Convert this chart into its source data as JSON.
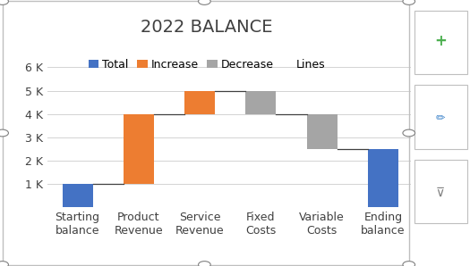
{
  "title": "2022 BALANCE",
  "categories": [
    "Starting\nbalance",
    "Product\nRevenue",
    "Service\nRevenue",
    "Fixed\nCosts",
    "Variable\nCosts",
    "Ending\nbalance"
  ],
  "values": [
    1000,
    3000,
    1000,
    -1000,
    -1500,
    0
  ],
  "types": [
    "total",
    "increase",
    "increase",
    "decrease",
    "decrease",
    "total"
  ],
  "starting_value": 1000,
  "ending_value": 2500,
  "colors": {
    "total": "#4472C4",
    "increase": "#ED7D31",
    "decrease": "#A5A5A5"
  },
  "legend_labels": [
    "Total",
    "Increase",
    "Decrease",
    "Lines"
  ],
  "ylim": [
    0,
    6600
  ],
  "yticks": [
    0,
    1000,
    2000,
    3000,
    4000,
    5000,
    6000
  ],
  "ytick_labels": [
    "",
    "1 K",
    "2 K",
    "3 K",
    "4 K",
    "5 K",
    "6 K"
  ],
  "background_color": "#FFFFFF",
  "grid_color": "#D3D3D3",
  "connector_color": "#404040",
  "border_color": "#BFBFBF",
  "title_fontsize": 14,
  "legend_fontsize": 9,
  "tick_fontsize": 9,
  "bar_width": 0.5,
  "chart_right_icons": true,
  "frame_color": "#808080",
  "handle_color": "#C0C0C0"
}
